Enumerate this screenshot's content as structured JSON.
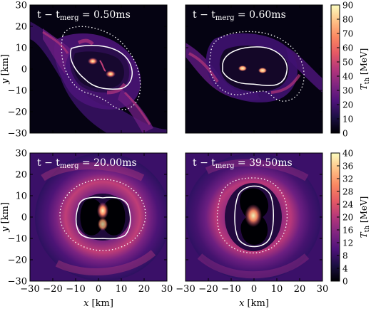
{
  "figure": {
    "panels": [
      {
        "label": "t − t_merg = 0.50ms",
        "label_main": "t − t",
        "label_sub": "merg",
        "label_tail": " = 0.50ms",
        "type": "early"
      },
      {
        "label": "t − t_merg = 0.60ms",
        "label_main": "t − t",
        "label_sub": "merg",
        "label_tail": " = 0.60ms",
        "type": "early2"
      },
      {
        "label": "t − t_merg = 20.00ms",
        "label_main": "t − t",
        "label_sub": "merg",
        "label_tail": " = 20.00ms",
        "type": "late"
      },
      {
        "label": "t − t_merg = 39.50ms",
        "label_main": "t − t",
        "label_sub": "merg",
        "label_tail": " = 39.50ms",
        "type": "late2"
      }
    ],
    "x_axis_label": "x [km]",
    "x_axis_main": "x",
    "x_axis_unit": " [km]",
    "y_axis_label": "y [km]",
    "y_axis_main": "y",
    "y_axis_unit": " [km]",
    "x_ticks": [
      "−30",
      "−20",
      "−10",
      "0",
      "10",
      "20",
      "30"
    ],
    "y_ticks": [
      "30",
      "20",
      "10",
      "0",
      "−10",
      "−20",
      "−30"
    ],
    "colorbar_top": {
      "label": "T_th [MeV]",
      "ticks": [
        "90",
        "80",
        "70",
        "60",
        "50",
        "40",
        "30",
        "20",
        "10",
        "0"
      ]
    },
    "colorbar_bottom": {
      "label": "T_th [MeV]",
      "ticks": [
        "40",
        "36",
        "32",
        "28",
        "24",
        "20",
        "16",
        "12",
        "8",
        "4",
        "0"
      ]
    },
    "cb_label_main": "T",
    "cb_label_sub": "th",
    "cb_label_unit": " [MeV]",
    "colormap": [
      "#000004",
      "#1c1044",
      "#4f127b",
      "#812581",
      "#b5367a",
      "#e55964",
      "#fb8761",
      "#fec287",
      "#fcfdbf"
    ]
  },
  "chart_data": {
    "type": "heatmap",
    "xlabel": "x [km]",
    "ylabel": "y [km]",
    "xlim": [
      -30,
      30
    ],
    "ylim": [
      -30,
      30
    ],
    "panels": [
      {
        "time_ms": 0.5,
        "colorbar_range_MeV": [
          0,
          90
        ]
      },
      {
        "time_ms": 0.6,
        "colorbar_range_MeV": [
          0,
          90
        ]
      },
      {
        "time_ms": 20.0,
        "colorbar_range_MeV": [
          0,
          40
        ]
      },
      {
        "time_ms": 39.5,
        "colorbar_range_MeV": [
          0,
          40
        ]
      }
    ]
  }
}
